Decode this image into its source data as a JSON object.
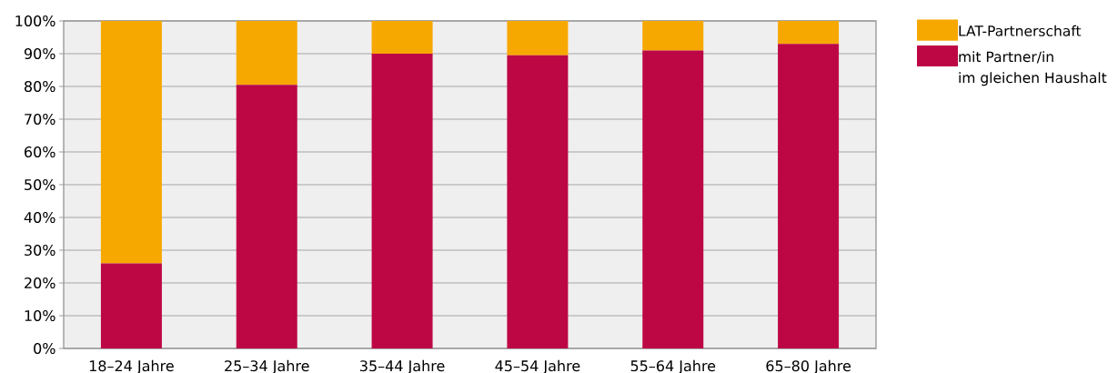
{
  "chart_data": {
    "type": "bar",
    "stacked": true,
    "categories": [
      "18–24 Jahre",
      "25–34 Jahre",
      "35–44 Jahre",
      "45–54 Jahre",
      "55–64 Jahre",
      "65–80 Jahre"
    ],
    "series": [
      {
        "name": "mit Partner/in\nim gleichen Haushalt",
        "color": "#bd0745",
        "values": [
          26,
          80.5,
          90,
          89.5,
          91,
          93
        ]
      },
      {
        "name": "LAT-Partnerschaft",
        "color": "#f7a800",
        "values": [
          74,
          19.5,
          10,
          10.5,
          9,
          7
        ]
      }
    ],
    "ylim": [
      0,
      100
    ],
    "yticks": [
      {
        "value": 0,
        "label": "0%"
      },
      {
        "value": 10,
        "label": "10%"
      },
      {
        "value": 20,
        "label": "20%"
      },
      {
        "value": 30,
        "label": "30%"
      },
      {
        "value": 40,
        "label": "40%"
      },
      {
        "value": 50,
        "label": "50%"
      },
      {
        "value": 60,
        "label": "60%"
      },
      {
        "value": 70,
        "label": "70%"
      },
      {
        "value": 80,
        "label": "80%"
      },
      {
        "value": 90,
        "label": "90%"
      },
      {
        "value": 100,
        "label": "100%"
      }
    ],
    "grid": "y",
    "legend": "top right"
  }
}
